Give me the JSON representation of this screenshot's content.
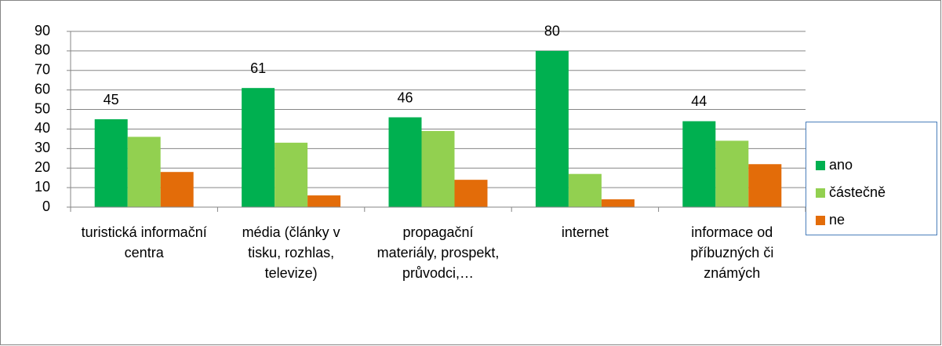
{
  "chart_data": {
    "type": "bar",
    "categories": [
      "turistická informační centra",
      "média (články v tisku, rozhlas, televize)",
      "propagační materiály, prospekt, průvodci,…",
      "internet",
      "informace od příbuzných či známých"
    ],
    "series": [
      {
        "name": "ano",
        "color": "#00b050",
        "values": [
          45,
          61,
          46,
          80,
          44
        ]
      },
      {
        "name": "částečně",
        "color": "#92d050",
        "values": [
          36,
          33,
          39,
          17,
          34
        ]
      },
      {
        "name": "ne",
        "color": "#e36c09",
        "values": [
          18,
          6,
          14,
          4,
          22
        ]
      }
    ],
    "ylim": [
      0,
      90
    ],
    "yticks": [
      0,
      10,
      20,
      30,
      40,
      50,
      60,
      70,
      80,
      90
    ],
    "grid": true,
    "legend": "right"
  }
}
